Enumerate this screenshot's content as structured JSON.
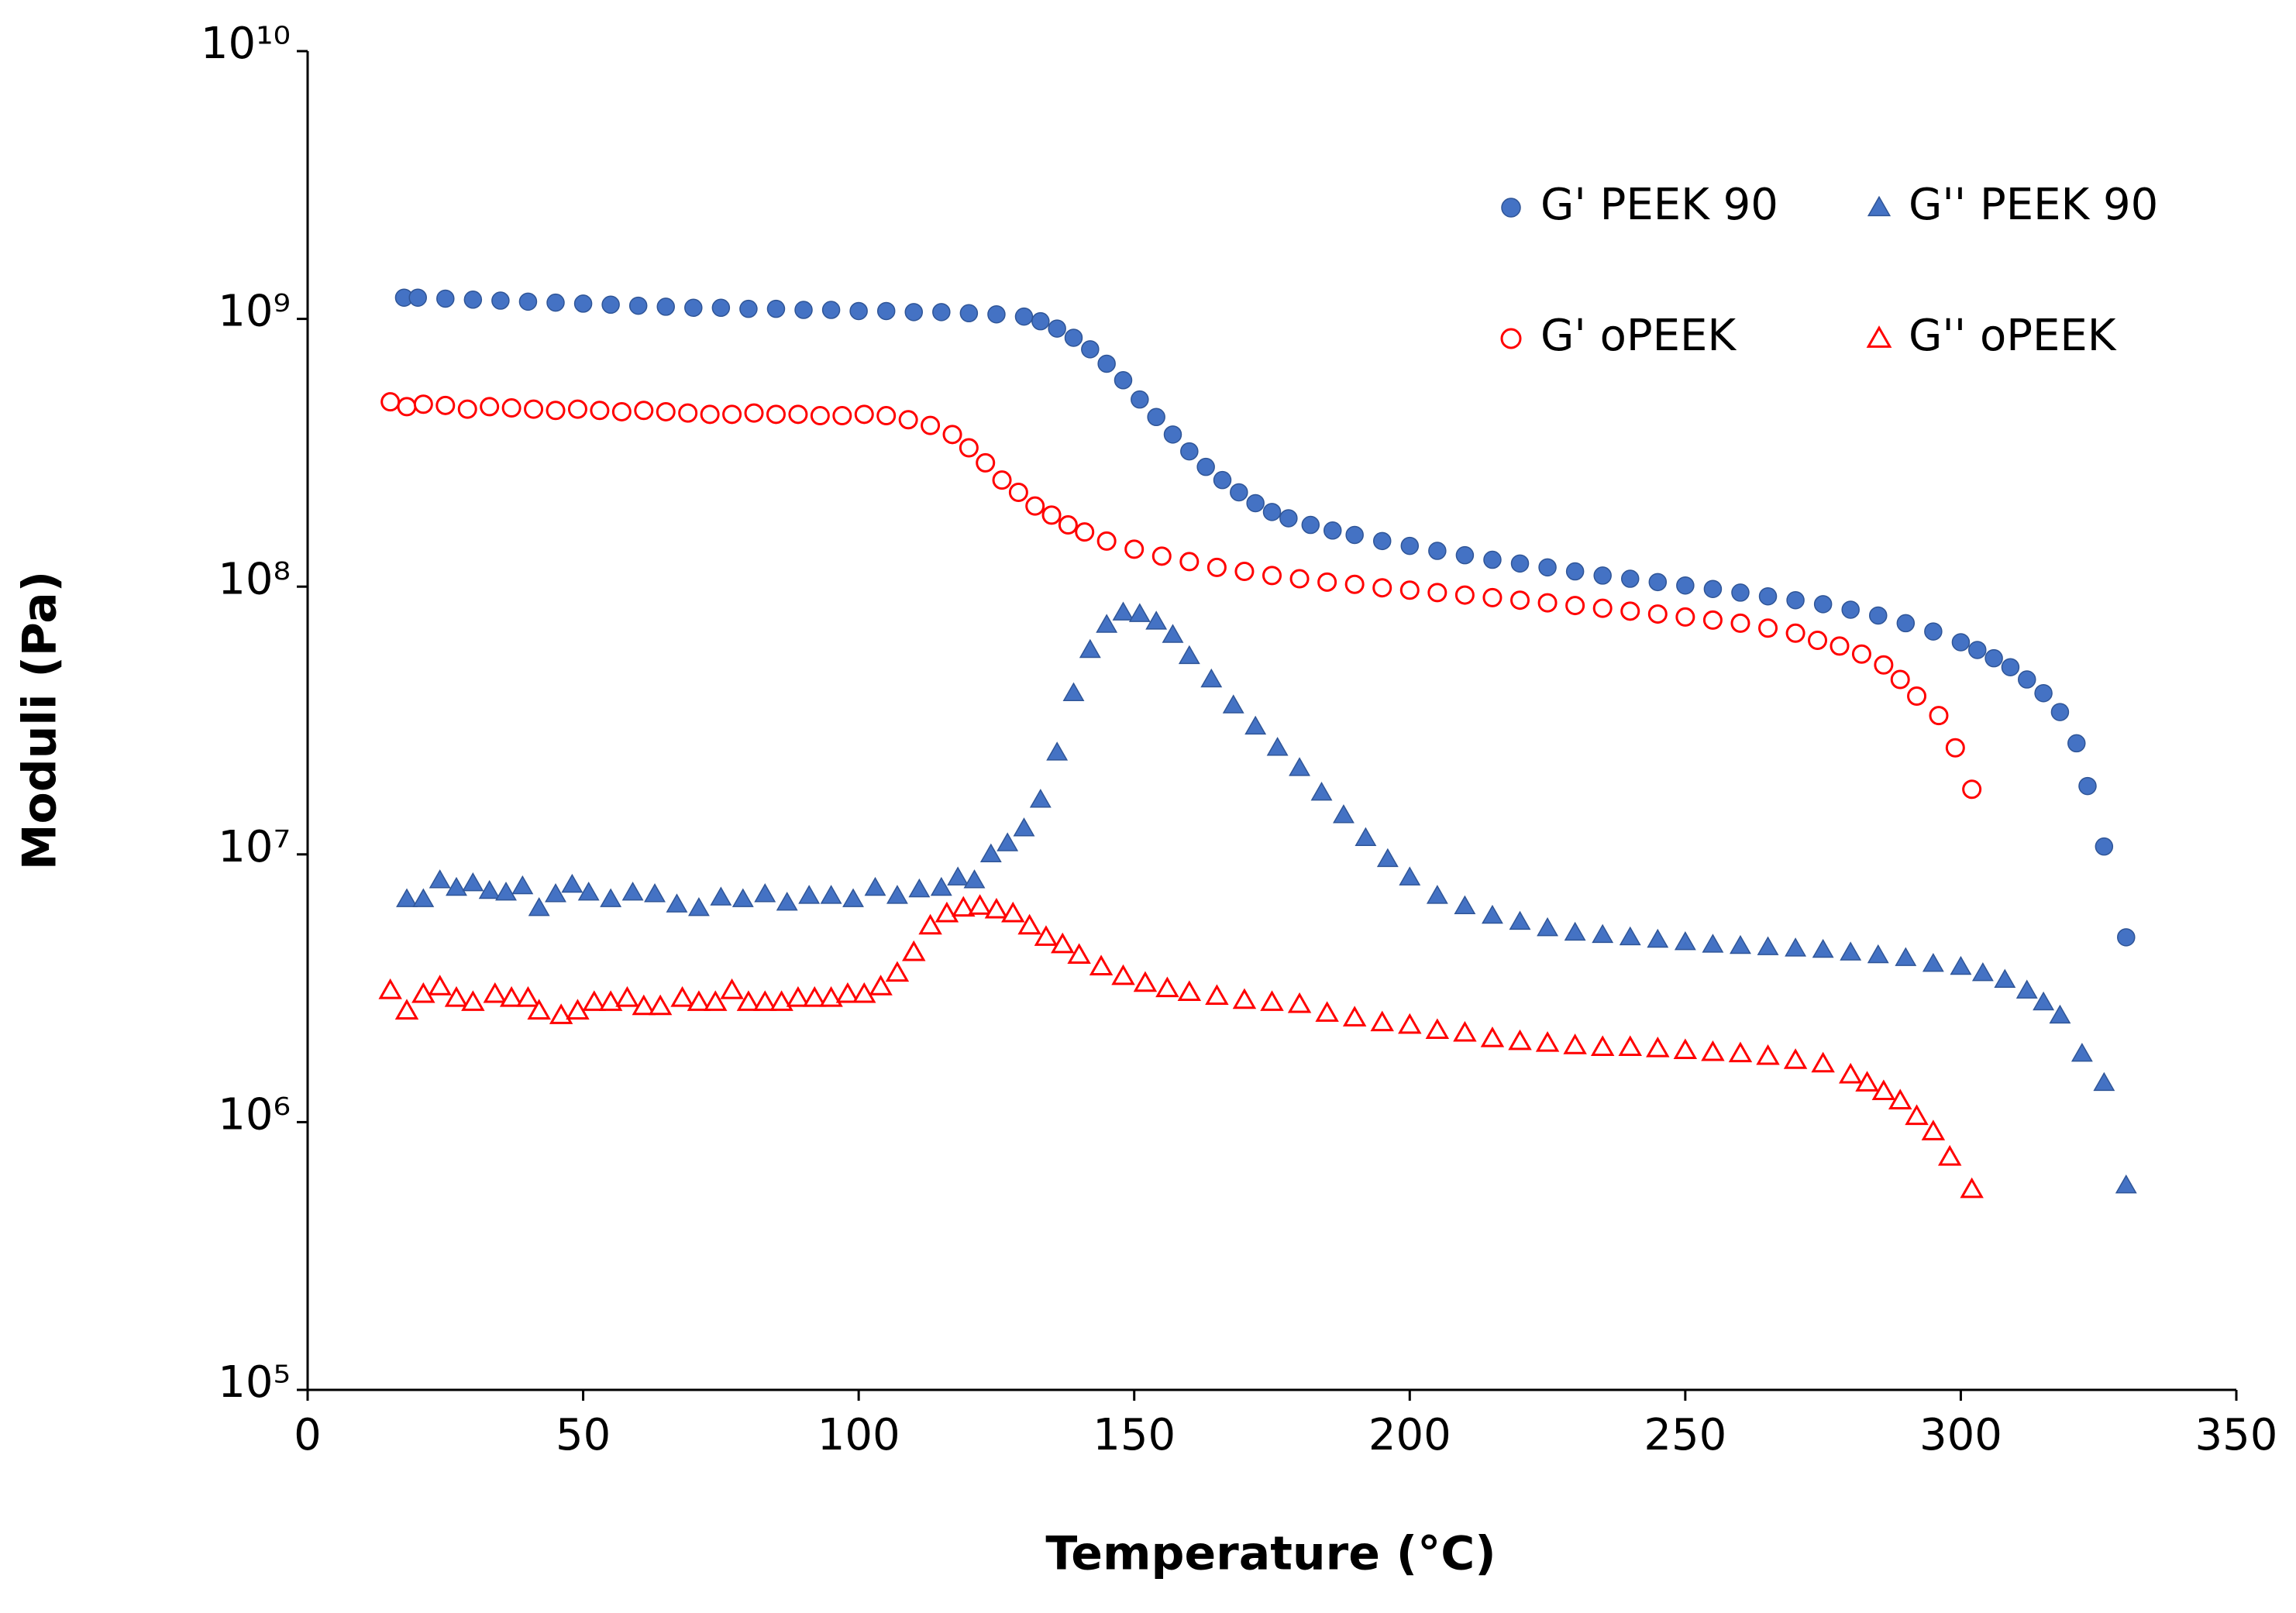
{
  "chart_data": {
    "type": "scatter",
    "xlabel": "Temperature (°C)",
    "ylabel": "Moduli (Pa)",
    "xlim": [
      0,
      350
    ],
    "xticks": [
      0,
      50,
      100,
      150,
      200,
      250,
      300,
      350
    ],
    "ylim": [
      100000,
      10000000000
    ],
    "yscale": "log",
    "yticks": [
      {
        "value": 100000,
        "label": "10⁵"
      },
      {
        "value": 1000000,
        "label": "10⁶"
      },
      {
        "value": 10000000,
        "label": "10⁷"
      },
      {
        "value": 100000000,
        "label": "10⁸"
      },
      {
        "value": 1000000000,
        "label": "10⁹"
      },
      {
        "value": 10000000000,
        "label": "10¹⁰"
      }
    ],
    "grid": false,
    "legend": "upper right",
    "series": [
      {
        "name": "G' PEEK 90",
        "color": "#4472c4",
        "marker": "circle",
        "filled": true,
        "x": [
          17.5,
          20,
          25,
          30,
          35,
          40,
          45,
          50,
          55,
          60,
          65,
          70,
          75,
          80,
          85,
          90,
          95,
          100,
          105,
          110,
          115,
          120,
          125,
          130,
          133,
          136,
          139,
          142,
          145,
          148,
          151,
          154,
          157,
          160,
          163,
          166,
          169,
          172,
          175,
          178,
          182,
          186,
          190,
          195,
          200,
          205,
          210,
          215,
          220,
          225,
          230,
          235,
          240,
          245,
          250,
          255,
          260,
          265,
          270,
          275,
          280,
          285,
          290,
          295,
          300,
          303,
          306,
          309,
          312,
          315,
          318,
          321,
          323,
          326,
          330
        ],
        "values": [
          1200000000.0,
          1200000000.0,
          1190000000.0,
          1180000000.0,
          1170000000.0,
          1160000000.0,
          1150000000.0,
          1140000000.0,
          1130000000.0,
          1120000000.0,
          1110000000.0,
          1100000000.0,
          1100000000.0,
          1090000000.0,
          1090000000.0,
          1080000000.0,
          1080000000.0,
          1070000000.0,
          1070000000.0,
          1060000000.0,
          1060000000.0,
          1050000000.0,
          1040000000.0,
          1020000000.0,
          980000000.0,
          920000000.0,
          850000000.0,
          770000000.0,
          680000000.0,
          590000000.0,
          500000000.0,
          430000000.0,
          370000000.0,
          320000000.0,
          280000000.0,
          250000000.0,
          225000000.0,
          205000000.0,
          190000000.0,
          180000000.0,
          170000000.0,
          162000000.0,
          156000000.0,
          148000000.0,
          142000000.0,
          136000000.0,
          131000000.0,
          126000000.0,
          122000000.0,
          118000000.0,
          114000000.0,
          110000000.0,
          107000000.0,
          104000000.0,
          101000000.0,
          98000000.0,
          95000000.0,
          92000000.0,
          89000000.0,
          86000000.0,
          82000000.0,
          78000000.0,
          73000000.0,
          68000000.0,
          62000000.0,
          58000000.0,
          54000000.0,
          50000000.0,
          45000000.0,
          40000000.0,
          34000000.0,
          26000000.0,
          18000000.0,
          10700000.0,
          4900000.0
        ]
      },
      {
        "name": "G'' PEEK 90",
        "color": "#4472c4",
        "marker": "triangle",
        "filled": true,
        "x": [
          18,
          21,
          24,
          27,
          30,
          33,
          36,
          39,
          42,
          45,
          48,
          51,
          55,
          59,
          63,
          67,
          71,
          75,
          79,
          83,
          87,
          91,
          95,
          99,
          103,
          107,
          111,
          115,
          118,
          121,
          124,
          127,
          130,
          133,
          136,
          139,
          142,
          145,
          148,
          151,
          154,
          157,
          160,
          164,
          168,
          172,
          176,
          180,
          184,
          188,
          192,
          196,
          200,
          205,
          210,
          215,
          220,
          225,
          230,
          235,
          240,
          245,
          250,
          255,
          260,
          265,
          270,
          275,
          280,
          285,
          290,
          295,
          300,
          304,
          308,
          312,
          315,
          318,
          322,
          326,
          330
        ],
        "values": [
          6800000.0,
          6800000.0,
          8000000.0,
          7500000.0,
          7800000.0,
          7300000.0,
          7200000.0,
          7600000.0,
          6300000.0,
          7100000.0,
          7700000.0,
          7200000.0,
          6800000.0,
          7200000.0,
          7100000.0,
          6500000.0,
          6300000.0,
          6900000.0,
          6800000.0,
          7100000.0,
          6600000.0,
          7000000.0,
          7000000.0,
          6800000.0,
          7500000.0,
          7000000.0,
          7400000.0,
          7500000.0,
          8200000.0,
          8000000.0,
          10000000.0,
          11000000.0,
          12500000.0,
          16000000.0,
          24000000.0,
          40000000.0,
          58000000.0,
          72000000.0,
          80000000.0,
          79000000.0,
          74000000.0,
          66000000.0,
          55000000.0,
          45000000.0,
          36000000.0,
          30000000.0,
          25000000.0,
          21000000.0,
          17000000.0,
          14000000.0,
          11500000.0,
          9600000.0,
          8200000.0,
          7000000.0,
          6400000.0,
          5900000.0,
          5600000.0,
          5300000.0,
          5100000.0,
          5000000.0,
          4900000.0,
          4800000.0,
          4700000.0,
          4600000.0,
          4550000.0,
          4500000.0,
          4450000.0,
          4400000.0,
          4300000.0,
          4200000.0,
          4100000.0,
          3900000.0,
          3800000.0,
          3600000.0,
          3400000.0,
          3100000.0,
          2800000.0,
          2500000.0,
          1800000.0,
          1400000.0,
          580000.0
        ]
      },
      {
        "name": "G' oPEEK",
        "color": "#ff0000",
        "marker": "circle",
        "filled": false,
        "x": [
          15,
          18,
          21,
          25,
          29,
          33,
          37,
          41,
          45,
          49,
          53,
          57,
          61,
          65,
          69,
          73,
          77,
          81,
          85,
          89,
          93,
          97,
          101,
          105,
          109,
          113,
          117,
          120,
          123,
          126,
          129,
          132,
          135,
          138,
          141,
          145,
          150,
          155,
          160,
          165,
          170,
          175,
          180,
          185,
          190,
          195,
          200,
          205,
          210,
          215,
          220,
          225,
          230,
          235,
          240,
          245,
          250,
          255,
          260,
          265,
          270,
          274,
          278,
          282,
          286,
          289,
          292,
          296,
          299,
          302
        ],
        "values": [
          490000000.0,
          470000000.0,
          480000000.0,
          475000000.0,
          460000000.0,
          470000000.0,
          465000000.0,
          460000000.0,
          455000000.0,
          460000000.0,
          455000000.0,
          450000000.0,
          455000000.0,
          450000000.0,
          445000000.0,
          440000000.0,
          440000000.0,
          445000000.0,
          440000000.0,
          440000000.0,
          435000000.0,
          435000000.0,
          440000000.0,
          435000000.0,
          420000000.0,
          400000000.0,
          370000000.0,
          330000000.0,
          290000000.0,
          250000000.0,
          225000000.0,
          200000000.0,
          185000000.0,
          170000000.0,
          160000000.0,
          148000000.0,
          138000000.0,
          130000000.0,
          124000000.0,
          118000000.0,
          114000000.0,
          110000000.0,
          107000000.0,
          104000000.0,
          102000000.0,
          99000000.0,
          97000000.0,
          95000000.0,
          93000000.0,
          91000000.0,
          89000000.0,
          87000000.0,
          85000000.0,
          83000000.0,
          81000000.0,
          79000000.0,
          77000000.0,
          75000000.0,
          73000000.0,
          70000000.0,
          67000000.0,
          63000000.0,
          60000000.0,
          56000000.0,
          51000000.0,
          45000000.0,
          39000000.0,
          33000000.0,
          25000000.0,
          17500000.0
        ]
      },
      {
        "name": "G'' oPEEK",
        "color": "#ff0000",
        "marker": "triangle",
        "filled": false,
        "x": [
          15,
          18,
          21,
          24,
          27,
          30,
          34,
          37,
          40,
          42,
          46,
          49,
          52,
          55,
          58,
          61,
          64,
          68,
          71,
          74,
          77,
          80,
          83,
          86,
          89,
          92,
          95,
          98,
          101,
          104,
          107,
          110,
          113,
          116,
          119,
          122,
          125,
          128,
          131,
          134,
          137,
          140,
          144,
          148,
          152,
          156,
          160,
          165,
          170,
          175,
          180,
          185,
          190,
          195,
          200,
          205,
          210,
          215,
          220,
          225,
          230,
          235,
          240,
          245,
          250,
          255,
          260,
          265,
          270,
          275,
          280,
          283,
          286,
          289,
          292,
          295,
          298,
          302
        ],
        "values": [
          3100000.0,
          2600000.0,
          3000000.0,
          3200000.0,
          2900000.0,
          2800000.0,
          3000000.0,
          2900000.0,
          2900000.0,
          2600000.0,
          2500000.0,
          2600000.0,
          2800000.0,
          2800000.0,
          2900000.0,
          2700000.0,
          2700000.0,
          2900000.0,
          2800000.0,
          2800000.0,
          3100000.0,
          2800000.0,
          2800000.0,
          2800000.0,
          2900000.0,
          2900000.0,
          2900000.0,
          3000000.0,
          3000000.0,
          3200000.0,
          3600000.0,
          4300000.0,
          5400000.0,
          6000000.0,
          6300000.0,
          6400000.0,
          6200000.0,
          6000000.0,
          5400000.0,
          4900000.0,
          4600000.0,
          4200000.0,
          3800000.0,
          3500000.0,
          3300000.0,
          3150000.0,
          3050000.0,
          2950000.0,
          2850000.0,
          2800000.0,
          2750000.0,
          2550000.0,
          2450000.0,
          2350000.0,
          2300000.0,
          2200000.0,
          2150000.0,
          2050000.0,
          2000000.0,
          1970000.0,
          1930000.0,
          1900000.0,
          1900000.0,
          1880000.0,
          1850000.0,
          1820000.0,
          1800000.0,
          1760000.0,
          1700000.0,
          1650000.0,
          1500000.0,
          1400000.0,
          1300000.0,
          1200000.0,
          1050000.0,
          920000.0,
          740000.0,
          560000.0
        ]
      }
    ]
  }
}
